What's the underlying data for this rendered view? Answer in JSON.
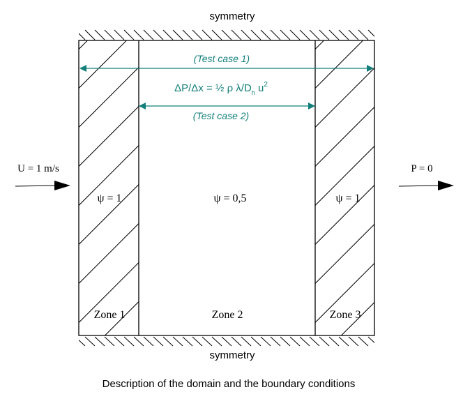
{
  "boundaries": {
    "top": "symmetry",
    "bottom": "symmetry",
    "inlet": "U = 1 m/s",
    "outlet": "P = 0"
  },
  "test_cases": {
    "case1": "(Test case 1)",
    "case2": "(Test case 2)"
  },
  "equation": {
    "main": "ΔP/Δx = ½ ρ λ/D",
    "subscript": "h",
    "tail": " u",
    "superscript": "2"
  },
  "zones": [
    {
      "name": "Zone 1",
      "psi": "ψ = 1",
      "hatched": true
    },
    {
      "name": "Zone 2",
      "psi": "ψ = 0,5",
      "hatched": false
    },
    {
      "name": "Zone 3",
      "psi": "ψ = 1",
      "hatched": true
    }
  ],
  "caption": "Description of the domain and the boundary conditions",
  "colors": {
    "arrow": "#137f7a",
    "line": "#000000"
  }
}
